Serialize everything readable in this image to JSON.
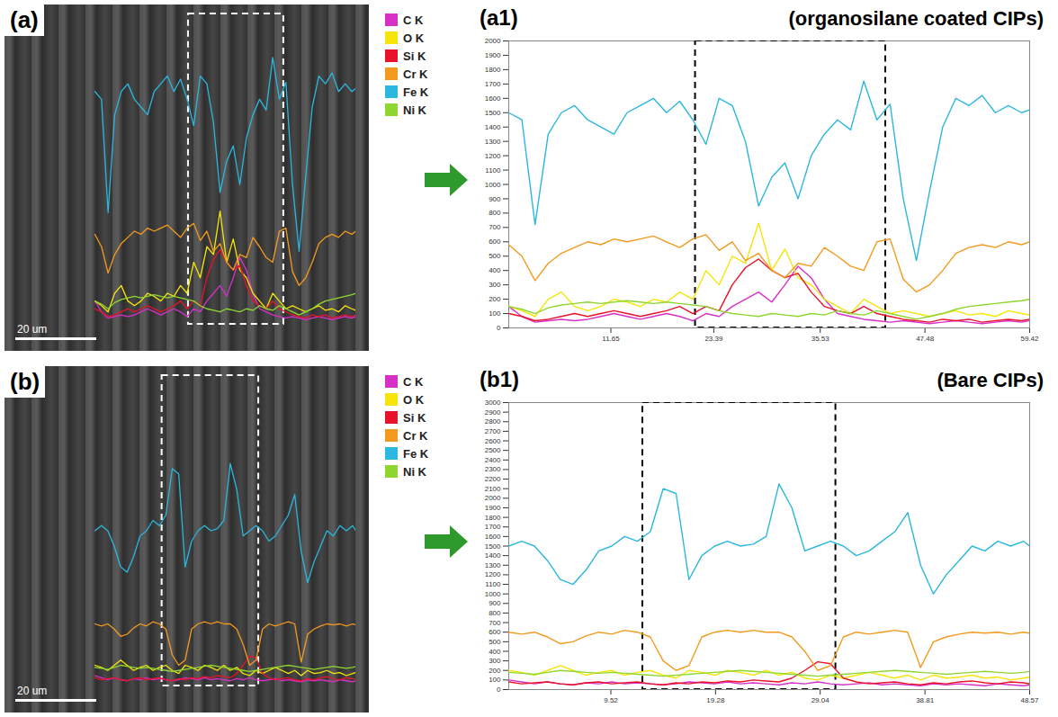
{
  "chart_data": [
    {
      "type": "line",
      "panel_labels": [
        "(a)",
        "(a1)"
      ],
      "title": "(organosilane coated CIPs)",
      "scale_bar": "20 um",
      "legend": "top-right",
      "x": [
        0,
        1.5,
        3,
        4.5,
        6,
        7.5,
        9,
        10.5,
        12,
        13.5,
        15,
        16.5,
        18,
        19.5,
        21,
        22.5,
        24,
        25.5,
        27,
        28.5,
        30,
        31.5,
        33,
        34.5,
        36,
        37.5,
        39,
        40.5,
        42,
        43.5,
        45,
        46.5,
        48,
        49.5,
        51,
        52.5,
        54,
        55.5,
        57,
        58.5,
        59.42
      ],
      "xlim": [
        0,
        59.42
      ],
      "xticks": [
        11.65,
        23.39,
        35.53,
        47.48,
        59.42
      ],
      "ylim": [
        0,
        2000
      ],
      "yticks": [
        0,
        100,
        200,
        300,
        400,
        500,
        600,
        700,
        800,
        900,
        1000,
        1100,
        1200,
        1300,
        1400,
        1500,
        1600,
        1700,
        1800,
        1900,
        2000
      ],
      "highlight_x": [
        21.3,
        43.0
      ],
      "series": [
        {
          "name": "C K",
          "color": "#d630c8",
          "values": [
            150,
            80,
            40,
            50,
            60,
            50,
            60,
            80,
            100,
            80,
            60,
            80,
            100,
            80,
            50,
            100,
            80,
            150,
            200,
            250,
            180,
            300,
            430,
            350,
            200,
            100,
            80,
            60,
            50,
            40,
            50,
            40,
            30,
            40,
            50,
            40,
            30,
            40,
            50,
            40,
            50
          ]
        },
        {
          "name": "O K",
          "color": "#f5e50a",
          "values": [
            150,
            120,
            80,
            200,
            250,
            150,
            120,
            150,
            200,
            180,
            150,
            200,
            180,
            250,
            200,
            400,
            300,
            500,
            450,
            730,
            400,
            550,
            350,
            300,
            200,
            150,
            100,
            200,
            150,
            100,
            120,
            100,
            80,
            100,
            120,
            90,
            100,
            80,
            120,
            100,
            90
          ]
        },
        {
          "name": "Si K",
          "color": "#e8132b",
          "values": [
            100,
            80,
            50,
            60,
            80,
            100,
            80,
            100,
            120,
            100,
            80,
            100,
            120,
            150,
            100,
            150,
            120,
            300,
            420,
            480,
            400,
            350,
            380,
            250,
            150,
            120,
            100,
            150,
            100,
            80,
            60,
            50,
            40,
            60,
            50,
            60,
            40,
            50,
            60,
            50,
            60
          ]
        },
        {
          "name": "Cr K",
          "color": "#f39a1e",
          "values": [
            580,
            500,
            330,
            450,
            520,
            560,
            600,
            580,
            620,
            600,
            620,
            640,
            600,
            560,
            620,
            650,
            540,
            600,
            470,
            520,
            400,
            350,
            450,
            430,
            560,
            500,
            430,
            400,
            600,
            620,
            340,
            250,
            300,
            400,
            520,
            560,
            580,
            560,
            600,
            580,
            600
          ]
        },
        {
          "name": "Fe K",
          "color": "#2bb7df",
          "values": [
            1500,
            1450,
            720,
            1350,
            1500,
            1550,
            1450,
            1400,
            1350,
            1500,
            1550,
            1600,
            1500,
            1580,
            1450,
            1280,
            1600,
            1550,
            1300,
            850,
            1050,
            1150,
            900,
            1200,
            1350,
            1450,
            1380,
            1720,
            1450,
            1560,
            900,
            470,
            950,
            1400,
            1600,
            1550,
            1620,
            1500,
            1550,
            1500,
            1520
          ]
        },
        {
          "name": "Ni K",
          "color": "#8fd630",
          "values": [
            150,
            130,
            100,
            140,
            160,
            170,
            180,
            170,
            180,
            190,
            180,
            170,
            180,
            170,
            160,
            150,
            120,
            100,
            90,
            80,
            100,
            90,
            80,
            100,
            90,
            120,
            100,
            90,
            120,
            100,
            80,
            60,
            80,
            100,
            130,
            150,
            160,
            170,
            180,
            190,
            200
          ]
        }
      ]
    },
    {
      "type": "line",
      "panel_labels": [
        "(b)",
        "(b1)"
      ],
      "title": "(Bare CIPs)",
      "scale_bar": "20 um",
      "legend": "top-right",
      "x": [
        0,
        1.2,
        2.4,
        3.6,
        4.8,
        6.0,
        7.2,
        8.4,
        9.6,
        10.8,
        12.0,
        13.2,
        14.4,
        15.6,
        16.8,
        18.0,
        19.2,
        20.4,
        21.6,
        22.8,
        24.0,
        25.2,
        26.4,
        27.6,
        28.8,
        30.0,
        31.2,
        32.4,
        33.6,
        34.8,
        36.0,
        37.2,
        38.4,
        39.6,
        40.8,
        42.0,
        43.2,
        44.4,
        45.6,
        46.8,
        48.0,
        48.57
      ],
      "xlim": [
        0,
        48.57
      ],
      "xticks": [
        9.52,
        19.28,
        29.04,
        38.81,
        48.57
      ],
      "ylim": [
        0,
        3000
      ],
      "yticks": [
        0,
        100,
        200,
        300,
        400,
        500,
        600,
        700,
        800,
        900,
        1000,
        1100,
        1200,
        1300,
        1400,
        1500,
        1600,
        1700,
        1800,
        1900,
        2000,
        2100,
        2200,
        2300,
        2400,
        2500,
        2600,
        2700,
        2800,
        2900,
        3000
      ],
      "highlight_x": [
        12.5,
        30.5
      ],
      "series": [
        {
          "name": "C K",
          "color": "#d630c8",
          "values": [
            100,
            80,
            60,
            80,
            60,
            50,
            70,
            60,
            80,
            60,
            70,
            60,
            50,
            60,
            80,
            70,
            60,
            80,
            60,
            70,
            60,
            50,
            70,
            60,
            80,
            60,
            50,
            60,
            70,
            50,
            60,
            50,
            40,
            60,
            50,
            60,
            50,
            40,
            60,
            50,
            40,
            50
          ]
        },
        {
          "name": "O K",
          "color": "#f5e50a",
          "values": [
            200,
            180,
            150,
            200,
            250,
            200,
            150,
            180,
            200,
            150,
            180,
            200,
            150,
            120,
            200,
            180,
            150,
            200,
            180,
            150,
            200,
            150,
            180,
            120,
            100,
            150,
            120,
            150,
            180,
            150,
            120,
            150,
            100,
            150,
            120,
            130,
            150,
            120,
            130,
            100,
            120,
            130
          ]
        },
        {
          "name": "Si K",
          "color": "#e8132b",
          "values": [
            80,
            60,
            70,
            80,
            60,
            50,
            70,
            80,
            60,
            70,
            80,
            60,
            50,
            70,
            60,
            80,
            70,
            90,
            80,
            100,
            90,
            80,
            120,
            200,
            290,
            270,
            120,
            80,
            60,
            70,
            80,
            60,
            50,
            70,
            60,
            80,
            90,
            70,
            60,
            80,
            70,
            60
          ]
        },
        {
          "name": "Cr K",
          "color": "#f39a1e",
          "values": [
            600,
            580,
            600,
            550,
            480,
            500,
            560,
            600,
            580,
            620,
            600,
            550,
            300,
            200,
            250,
            550,
            600,
            620,
            600,
            620,
            600,
            600,
            550,
            400,
            200,
            250,
            550,
            600,
            580,
            600,
            620,
            600,
            230,
            500,
            550,
            580,
            600,
            590,
            600,
            580,
            600,
            590
          ]
        },
        {
          "name": "Fe K",
          "color": "#2bb7df",
          "values": [
            1500,
            1550,
            1500,
            1350,
            1150,
            1100,
            1250,
            1450,
            1500,
            1600,
            1550,
            1650,
            2100,
            2050,
            1150,
            1400,
            1500,
            1550,
            1500,
            1520,
            1600,
            2150,
            1900,
            1450,
            1500,
            1550,
            1500,
            1400,
            1450,
            1550,
            1650,
            1850,
            1300,
            1000,
            1200,
            1350,
            1500,
            1450,
            1550,
            1500,
            1550,
            1500
          ]
        },
        {
          "name": "Ni K",
          "color": "#8fd630",
          "values": [
            180,
            170,
            160,
            180,
            200,
            190,
            180,
            170,
            180,
            170,
            160,
            150,
            140,
            150,
            160,
            170,
            180,
            190,
            200,
            190,
            180,
            170,
            160,
            150,
            140,
            150,
            160,
            170,
            180,
            190,
            200,
            190,
            180,
            170,
            160,
            170,
            180,
            190,
            180,
            170,
            180,
            190
          ]
        }
      ]
    }
  ]
}
